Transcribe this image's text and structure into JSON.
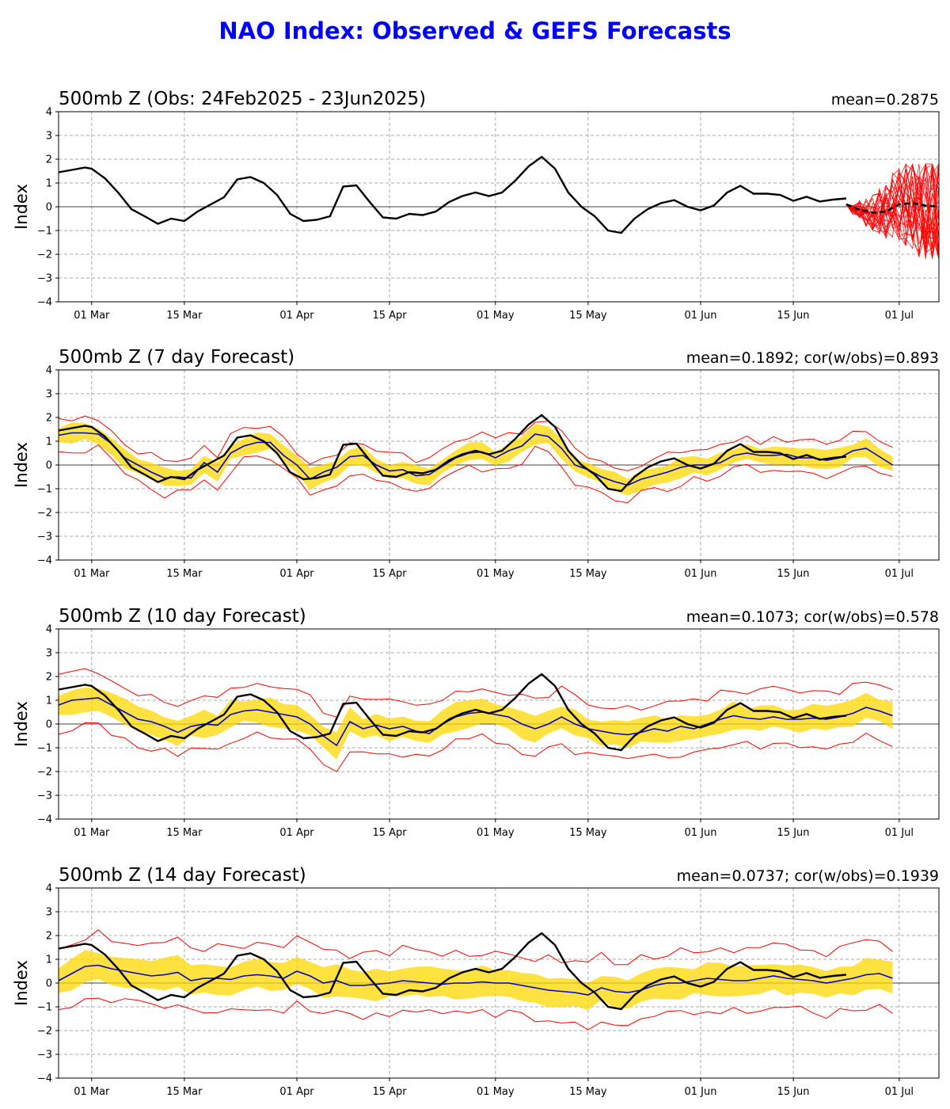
{
  "title": "NAO Index: Observed & GEFS Forecasts",
  "colors": {
    "title": "#0000ff",
    "obs": "#000000",
    "members": "#ff0000",
    "ens_mean": "#0000cc",
    "band": "#ffd700",
    "grid": "#aaaaaa"
  },
  "chart_data": [
    {
      "type": "line",
      "title": "500mb Z (Obs: 24Feb2025 - 23Jun2025)",
      "stat": "mean=0.2875",
      "ylabel": "Index",
      "ylim": [
        -4,
        4
      ],
      "yticks": [
        "4",
        "3",
        "2",
        "1",
        "0",
        "−1",
        "−2",
        "−3",
        "−4"
      ],
      "xlim": [
        "2025-02-24",
        "2025-07-07"
      ],
      "xticks": [
        "01 Mar",
        "15 Mar",
        "01 Apr",
        "15 Apr",
        "01 May",
        "15 May",
        "01 Jun",
        "15 Jun",
        "01 Jul"
      ],
      "grid": true,
      "observed": {
        "dates": [
          "2025-02-24",
          "2025-02-26",
          "2025-02-28",
          "2025-03-01",
          "2025-03-03",
          "2025-03-05",
          "2025-03-07",
          "2025-03-09",
          "2025-03-11",
          "2025-03-13",
          "2025-03-15",
          "2025-03-17",
          "2025-03-19",
          "2025-03-21",
          "2025-03-23",
          "2025-03-25",
          "2025-03-27",
          "2025-03-29",
          "2025-03-31",
          "2025-04-02",
          "2025-04-04",
          "2025-04-06",
          "2025-04-08",
          "2025-04-10",
          "2025-04-12",
          "2025-04-14",
          "2025-04-16",
          "2025-04-18",
          "2025-04-20",
          "2025-04-22",
          "2025-04-24",
          "2025-04-26",
          "2025-04-28",
          "2025-04-30",
          "2025-05-02",
          "2025-05-04",
          "2025-05-06",
          "2025-05-08",
          "2025-05-10",
          "2025-05-12",
          "2025-05-14",
          "2025-05-16",
          "2025-05-18",
          "2025-05-20",
          "2025-05-22",
          "2025-05-24",
          "2025-05-26",
          "2025-05-28",
          "2025-05-30",
          "2025-06-01",
          "2025-06-03",
          "2025-06-05",
          "2025-06-07",
          "2025-06-09",
          "2025-06-11",
          "2025-06-13",
          "2025-06-15",
          "2025-06-17",
          "2025-06-19",
          "2025-06-21",
          "2025-06-23"
        ],
        "values": [
          1.45,
          1.55,
          1.65,
          1.6,
          1.2,
          0.6,
          -0.1,
          -0.4,
          -0.72,
          -0.5,
          -0.6,
          -0.2,
          0.1,
          0.4,
          1.15,
          1.25,
          1.0,
          0.5,
          -0.3,
          -0.6,
          -0.55,
          -0.4,
          0.85,
          0.9,
          0.2,
          -0.45,
          -0.5,
          -0.3,
          -0.35,
          -0.2,
          0.2,
          0.45,
          0.6,
          0.45,
          0.6,
          1.1,
          1.7,
          2.1,
          1.6,
          0.6,
          0.0,
          -0.4,
          -1.0,
          -1.1,
          -0.5,
          -0.1,
          0.15,
          0.28,
          0.0,
          -0.15,
          0.05,
          0.6,
          0.88,
          0.55,
          0.55,
          0.5,
          0.25,
          0.42,
          0.22,
          0.3,
          0.35
        ]
      },
      "gefs_forecast": {
        "start_date": "2025-06-23",
        "members": 30,
        "mean_dates": [
          "2025-06-23",
          "2025-06-25",
          "2025-06-27",
          "2025-06-29",
          "2025-07-01",
          "2025-07-03",
          "2025-07-05",
          "2025-07-07"
        ],
        "mean_values": [
          0.1,
          -0.12,
          -0.25,
          -0.2,
          0.1,
          0.15,
          0.05,
          0.0
        ],
        "range": [
          -2.1,
          1.7
        ]
      }
    },
    {
      "type": "line",
      "title": "500mb Z (7 day Forecast)",
      "stat": "mean=0.1892; cor(w/obs)=0.893",
      "ylabel": "Index",
      "ylim": [
        -4,
        4
      ],
      "yticks": [
        "4",
        "3",
        "2",
        "1",
        "0",
        "−1",
        "−2",
        "−3",
        "−4"
      ],
      "xticks": [
        "01 Mar",
        "15 Mar",
        "01 Apr",
        "15 Apr",
        "01 May",
        "15 May",
        "01 Jun",
        "15 Jun",
        "01 Jul"
      ],
      "grid": true,
      "series": [
        {
          "role": "ens_mean",
          "values": [
            1.25,
            1.35,
            1.35,
            1.3,
            0.9,
            0.3,
            0.0,
            -0.3,
            -0.55,
            -0.5,
            -0.55,
            0.1,
            -0.3,
            0.5,
            0.8,
            0.95,
            0.95,
            0.4,
            0.0,
            -0.6,
            -0.3,
            -0.1,
            0.35,
            0.4,
            0.0,
            -0.25,
            -0.2,
            -0.45,
            -0.4,
            -0.05,
            0.3,
            0.5,
            0.55,
            0.3,
            0.6,
            0.8,
            1.3,
            1.2,
            0.7,
            0.0,
            -0.2,
            -0.5,
            -0.7,
            -0.85,
            -0.6,
            -0.45,
            -0.3,
            -0.1,
            0.0,
            0.0,
            0.1,
            0.4,
            0.5,
            0.4,
            0.4,
            0.45,
            0.3,
            0.3,
            0.2,
            0.3,
            0.6,
            0.7,
            0.35,
            0.0
          ]
        },
        {
          "role": "obs",
          "values": [
            1.45,
            1.55,
            1.65,
            1.6,
            1.2,
            0.6,
            -0.1,
            -0.4,
            -0.72,
            -0.5,
            -0.6,
            -0.2,
            0.1,
            0.4,
            1.15,
            1.25,
            1.0,
            0.5,
            -0.3,
            -0.6,
            -0.55,
            -0.4,
            0.85,
            0.9,
            0.2,
            -0.45,
            -0.5,
            -0.3,
            -0.35,
            -0.2,
            0.2,
            0.45,
            0.6,
            0.45,
            0.6,
            1.1,
            1.7,
            2.1,
            1.6,
            0.6,
            0.0,
            -0.4,
            -1.0,
            -1.1,
            -0.5,
            -0.1,
            0.15,
            0.28,
            0.0,
            -0.15,
            0.05,
            0.6,
            0.88,
            0.55,
            0.55,
            0.5,
            0.25,
            0.42,
            0.22,
            0.3,
            0.35
          ]
        }
      ],
      "band_halfwidth": 0.35,
      "envelope_halfwidth": 0.65
    },
    {
      "type": "line",
      "title": "500mb Z (10 day Forecast)",
      "stat": "mean=0.1073; cor(w/obs)=0.578",
      "ylabel": "Index",
      "ylim": [
        -4,
        4
      ],
      "yticks": [
        "4",
        "3",
        "2",
        "1",
        "0",
        "−1",
        "−2",
        "−3",
        "−4"
      ],
      "xticks": [
        "01 Mar",
        "15 Mar",
        "01 Apr",
        "15 Apr",
        "01 May",
        "15 May",
        "01 Jun",
        "15 Jun",
        "01 Jul"
      ],
      "grid": true,
      "series": [
        {
          "role": "ens_mean",
          "values": [
            0.8,
            1.0,
            1.05,
            1.1,
            0.8,
            0.5,
            0.2,
            0.1,
            -0.1,
            -0.35,
            -0.1,
            0.0,
            -0.05,
            0.4,
            0.55,
            0.6,
            0.5,
            0.4,
            0.3,
            0.0,
            -0.5,
            -0.9,
            0.1,
            -0.2,
            -0.05,
            -0.2,
            -0.1,
            -0.3,
            -0.4,
            0.0,
            0.3,
            0.45,
            0.5,
            0.4,
            0.3,
            0.0,
            -0.2,
            0.0,
            0.3,
            0.0,
            -0.2,
            -0.3,
            -0.4,
            -0.45,
            -0.35,
            -0.2,
            -0.3,
            -0.1,
            -0.2,
            0.0,
            0.2,
            0.35,
            0.25,
            0.2,
            0.3,
            0.2,
            0.2,
            0.25,
            0.2,
            0.3,
            0.45,
            0.7,
            0.55,
            0.35
          ]
        },
        {
          "role": "obs",
          "values": [
            1.45,
            1.55,
            1.65,
            1.6,
            1.2,
            0.6,
            -0.1,
            -0.4,
            -0.72,
            -0.5,
            -0.6,
            -0.2,
            0.1,
            0.4,
            1.15,
            1.25,
            1.0,
            0.5,
            -0.3,
            -0.6,
            -0.55,
            -0.4,
            0.85,
            0.9,
            0.2,
            -0.45,
            -0.5,
            -0.3,
            -0.35,
            -0.2,
            0.2,
            0.45,
            0.6,
            0.45,
            0.6,
            1.1,
            1.7,
            2.1,
            1.6,
            0.6,
            0.0,
            -0.4,
            -1.0,
            -1.1,
            -0.5,
            -0.1,
            0.15,
            0.28,
            0.0,
            -0.15,
            0.05,
            0.6,
            0.88,
            0.55,
            0.55,
            0.5,
            0.25,
            0.42,
            0.22,
            0.3,
            0.35
          ]
        }
      ],
      "band_halfwidth": 0.5,
      "envelope_halfwidth": 1.1
    },
    {
      "type": "line",
      "title": "500mb Z (14 day Forecast)",
      "stat": "mean=0.0737; cor(w/obs)=0.1939",
      "ylabel": "Index",
      "ylim": [
        -4,
        4
      ],
      "yticks": [
        "4",
        "3",
        "2",
        "1",
        "0",
        "−1",
        "−2",
        "−3",
        "−4"
      ],
      "xticks": [
        "01 Mar",
        "15 Mar",
        "01 Apr",
        "15 Apr",
        "01 May",
        "15 May",
        "01 Jun",
        "15 Jun",
        "01 Jul"
      ],
      "grid": true,
      "series": [
        {
          "role": "ens_mean",
          "values": [
            0.1,
            0.4,
            0.7,
            0.75,
            0.6,
            0.5,
            0.4,
            0.3,
            0.35,
            0.45,
            0.1,
            0.2,
            0.2,
            0.15,
            0.3,
            0.35,
            0.3,
            0.2,
            0.5,
            0.3,
            0.0,
            0.1,
            -0.1,
            -0.1,
            -0.05,
            0.0,
            0.1,
            0.05,
            0.0,
            -0.05,
            0.0,
            0.0,
            0.05,
            0.0,
            0.0,
            -0.1,
            -0.2,
            -0.3,
            -0.35,
            -0.4,
            -0.5,
            -0.2,
            -0.35,
            -0.4,
            -0.3,
            -0.1,
            0.0,
            0.0,
            0.1,
            0.2,
            0.15,
            0.1,
            0.1,
            0.2,
            0.3,
            0.2,
            0.15,
            0.1,
            0.0,
            0.1,
            0.2,
            0.35,
            0.4,
            0.2
          ]
        },
        {
          "role": "obs",
          "values": [
            1.45,
            1.55,
            1.65,
            1.6,
            1.2,
            0.6,
            -0.1,
            -0.4,
            -0.72,
            -0.5,
            -0.6,
            -0.2,
            0.1,
            0.4,
            1.15,
            1.25,
            1.0,
            0.5,
            -0.3,
            -0.6,
            -0.55,
            -0.4,
            0.85,
            0.9,
            0.2,
            -0.45,
            -0.5,
            -0.3,
            -0.35,
            -0.2,
            0.2,
            0.45,
            0.6,
            0.45,
            0.6,
            1.1,
            1.7,
            2.1,
            1.6,
            0.6,
            0.0,
            -0.4,
            -1.0,
            -1.1,
            -0.5,
            -0.1,
            0.15,
            0.28,
            0.0,
            -0.15,
            0.05,
            0.6,
            0.88,
            0.55,
            0.55,
            0.5,
            0.25,
            0.42,
            0.22,
            0.3,
            0.35
          ]
        }
      ],
      "band_halfwidth": 0.6,
      "envelope_halfwidth": 1.3
    }
  ]
}
